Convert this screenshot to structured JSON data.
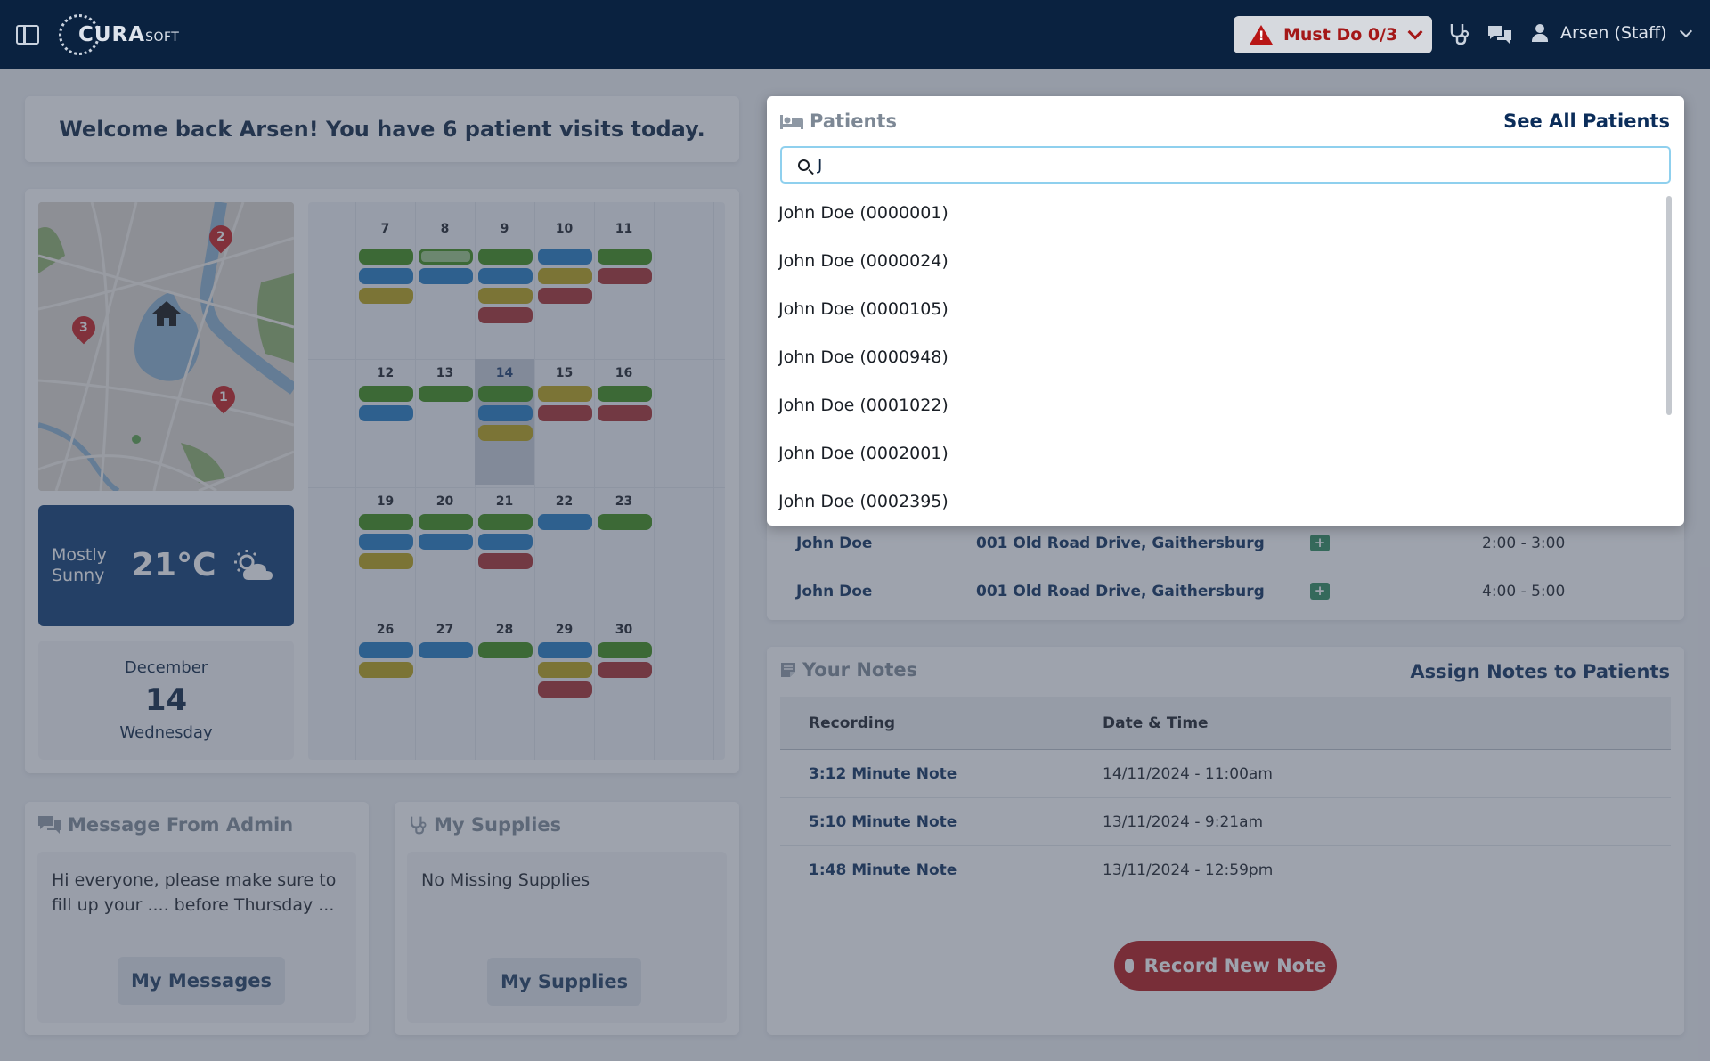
{
  "header": {
    "logo_main": "CURA",
    "logo_sub": "SOFT",
    "must_do_label": "Must Do 0/3",
    "user_label": "Arsen (Staff)"
  },
  "welcome": {
    "text": "Welcome back Arsen! You have 6 patient visits today."
  },
  "map": {
    "markers": [
      "1",
      "2",
      "3"
    ]
  },
  "weather": {
    "condition_line1": "Mostly",
    "condition_line2": "Sunny",
    "temperature": "21°C"
  },
  "date": {
    "month": "December",
    "day": "14",
    "weekday": "Wednesday"
  },
  "calendar": {
    "colors": {
      "green": "#3a8a10",
      "blue": "#1e78c0",
      "yellow": "#b8a010",
      "red": "#a62b2b",
      "today": "#c7cdd6"
    },
    "weeks": [
      {
        "days": [
          {
            "label": "7",
            "events": [
              "green",
              "blue",
              "yellow"
            ]
          },
          {
            "label": "8",
            "events": [
              "green-outline",
              "blue"
            ]
          },
          {
            "label": "9",
            "events": [
              "green",
              "blue",
              "yellow",
              "red"
            ]
          },
          {
            "label": "10",
            "events": [
              "blue",
              "yellow",
              "red"
            ]
          },
          {
            "label": "11",
            "events": [
              "green",
              "red"
            ]
          }
        ]
      },
      {
        "days": [
          {
            "label": "12",
            "events": [
              "green",
              "blue"
            ]
          },
          {
            "label": "13",
            "events": [
              "green"
            ]
          },
          {
            "label": "14",
            "events": [
              "green",
              "blue",
              "yellow"
            ],
            "today": true
          },
          {
            "label": "15",
            "events": [
              "yellow",
              "red"
            ]
          },
          {
            "label": "16",
            "events": [
              "green",
              "red"
            ]
          }
        ]
      },
      {
        "days": [
          {
            "label": "19",
            "events": [
              "green",
              "blue",
              "yellow"
            ]
          },
          {
            "label": "20",
            "events": [
              "green",
              "blue"
            ]
          },
          {
            "label": "21",
            "events": [
              "green",
              "blue",
              "red"
            ]
          },
          {
            "label": "22",
            "events": [
              "blue"
            ]
          },
          {
            "label": "23",
            "events": [
              "green"
            ]
          }
        ]
      },
      {
        "days": [
          {
            "label": "26",
            "events": [
              "blue",
              "yellow"
            ]
          },
          {
            "label": "27",
            "events": [
              "blue"
            ]
          },
          {
            "label": "28",
            "events": [
              "green"
            ]
          },
          {
            "label": "29",
            "events": [
              "blue",
              "yellow",
              "red"
            ]
          },
          {
            "label": "30",
            "events": [
              "green",
              "red"
            ]
          }
        ]
      }
    ]
  },
  "admin": {
    "title": "Message From Admin",
    "message": "Hi everyone, please make sure to fill up your .... before Thursday ...",
    "button": "My Messages"
  },
  "supplies": {
    "title": "My Supplies",
    "message": "No Missing Supplies",
    "button": "My Supplies"
  },
  "patients": {
    "title": "Patients",
    "see_all": "See All Patients",
    "search_value": "J",
    "results": [
      "John Doe (0000001)",
      "John Doe (0000024)",
      "John Doe (0000105)",
      "John Doe (0000948)",
      "John Doe (0001022)",
      "John Doe (0002001)",
      "John Doe (0002395)"
    ],
    "visits": [
      {
        "name": "John Doe",
        "address": "001 Old Road Drive, Gaithersburg",
        "time": "2:00 - 3:00"
      },
      {
        "name": "John Doe",
        "address": "001 Old Road Drive, Gaithersburg",
        "time": "4:00 - 5:00"
      }
    ]
  },
  "notes": {
    "title": "Your Notes",
    "assign": "Assign Notes to Patients",
    "col_recording": "Recording",
    "col_datetime": "Date & Time",
    "rows": [
      {
        "recording": "3:12 Minute Note",
        "datetime": "14/11/2024 - 11:00am"
      },
      {
        "recording": "5:10 Minute Note",
        "datetime": "13/11/2024 - 9:21am"
      },
      {
        "recording": "1:48 Minute Note",
        "datetime": "13/11/2024 - 12:59pm"
      }
    ],
    "record_button": "Record New Note"
  }
}
